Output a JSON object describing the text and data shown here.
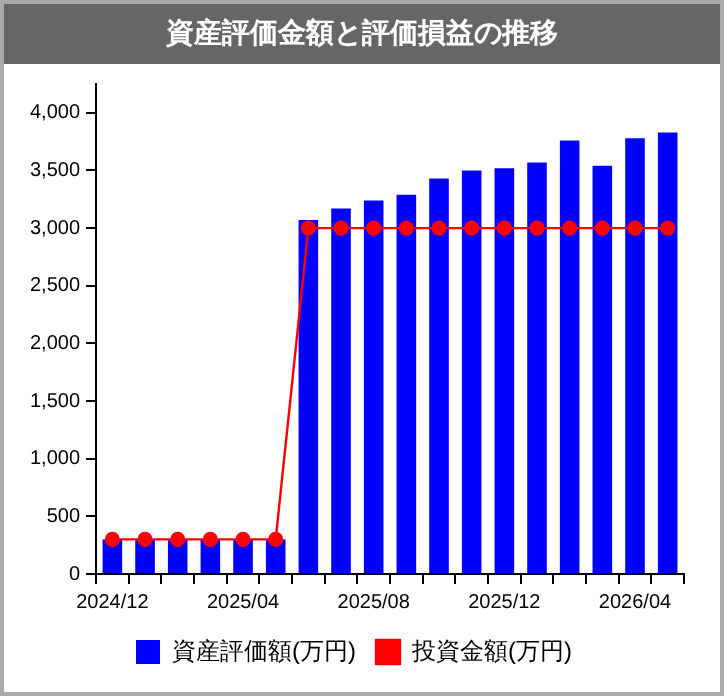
{
  "chart_data": {
    "type": "bar",
    "title": "資産評価金額と評価損益の推移",
    "categories": [
      "2024/12",
      null,
      null,
      null,
      "2025/04",
      null,
      null,
      null,
      "2025/08",
      null,
      null,
      null,
      "2025/12",
      null,
      null,
      null,
      "2026/04",
      null
    ],
    "series": [
      {
        "name": "資産評価額(万円)",
        "color": "#0000ff",
        "values": [
          300,
          300,
          300,
          300,
          300,
          300,
          3070,
          3170,
          3240,
          3290,
          3430,
          3500,
          3520,
          3570,
          3760,
          3540,
          3780,
          3830
        ]
      },
      {
        "name": "投資金額(万円)",
        "type": "line",
        "color": "#ff0000",
        "marker": "circle",
        "values": [
          300,
          300,
          300,
          300,
          300,
          300,
          3000,
          3000,
          3000,
          3000,
          3000,
          3000,
          3000,
          3000,
          3000,
          3000,
          3000,
          3000
        ]
      }
    ],
    "ylim": [
      0,
      4250
    ],
    "yticks": [
      0,
      500,
      {
        "value": 1000,
        "label": "1,000"
      },
      {
        "value": 1500,
        "label": "1,500"
      },
      {
        "value": 2000,
        "label": "2,000"
      },
      {
        "value": 2500,
        "label": "2,500"
      },
      {
        "value": 3000,
        "label": "3,000"
      },
      {
        "value": 3500,
        "label": "3,500"
      },
      {
        "value": 4000,
        "label": "4,000"
      }
    ],
    "grid": false,
    "legend": "bottom"
  }
}
